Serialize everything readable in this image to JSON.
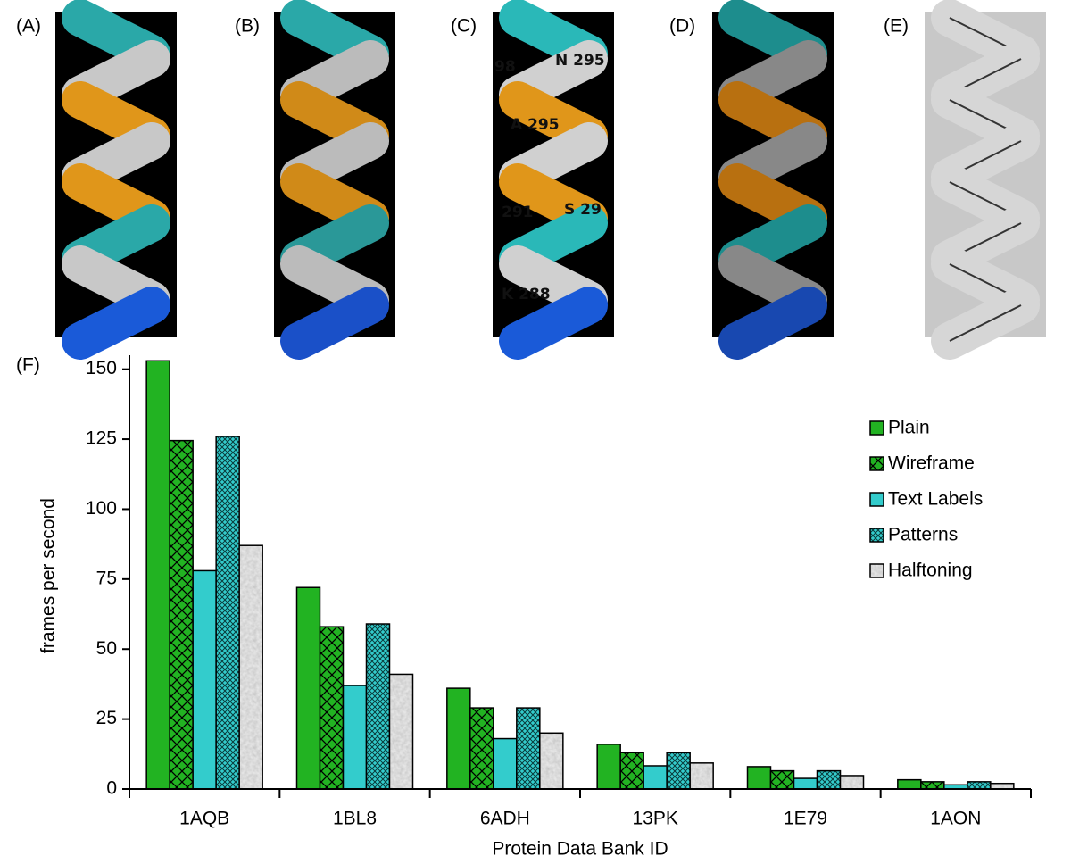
{
  "panels": [
    {
      "label": "(A)"
    },
    {
      "label": "(B)"
    },
    {
      "label": "(C)",
      "texts": [
        "98",
        "N 295",
        "A 295",
        "291",
        "S 29",
        "K 288"
      ]
    },
    {
      "label": "(D)"
    },
    {
      "label": "(E)"
    }
  ],
  "chart_label": "(F)",
  "chart_data": {
    "type": "bar",
    "xlabel": "Protein Data Bank ID",
    "ylabel": "frames per second",
    "categories": [
      "1AQB",
      "1BL8",
      "6ADH",
      "13PK",
      "1E79",
      "1AON"
    ],
    "series": [
      {
        "name": "Plain",
        "color": "#22b322",
        "values": [
          153,
          72,
          36,
          16,
          8,
          3.3
        ]
      },
      {
        "name": "Wireframe",
        "color": "#22b322",
        "values": [
          124.5,
          58,
          29,
          13,
          6.5,
          2.6
        ]
      },
      {
        "name": "Text Labels",
        "color": "#33cccc",
        "values": [
          78,
          37,
          18,
          8.3,
          3.8,
          1.5
        ]
      },
      {
        "name": "Patterns",
        "color": "#33cccc",
        "values": [
          126,
          59,
          29,
          13,
          6.5,
          2.6
        ]
      },
      {
        "name": "Halftoning",
        "color": "#c8c8c8",
        "values": [
          87,
          41,
          20,
          9.3,
          4.8,
          2
        ]
      }
    ],
    "ylim": [
      0,
      155
    ],
    "yticks": [
      0,
      25,
      50,
      75,
      100,
      125,
      150
    ],
    "legend": "upper right"
  }
}
